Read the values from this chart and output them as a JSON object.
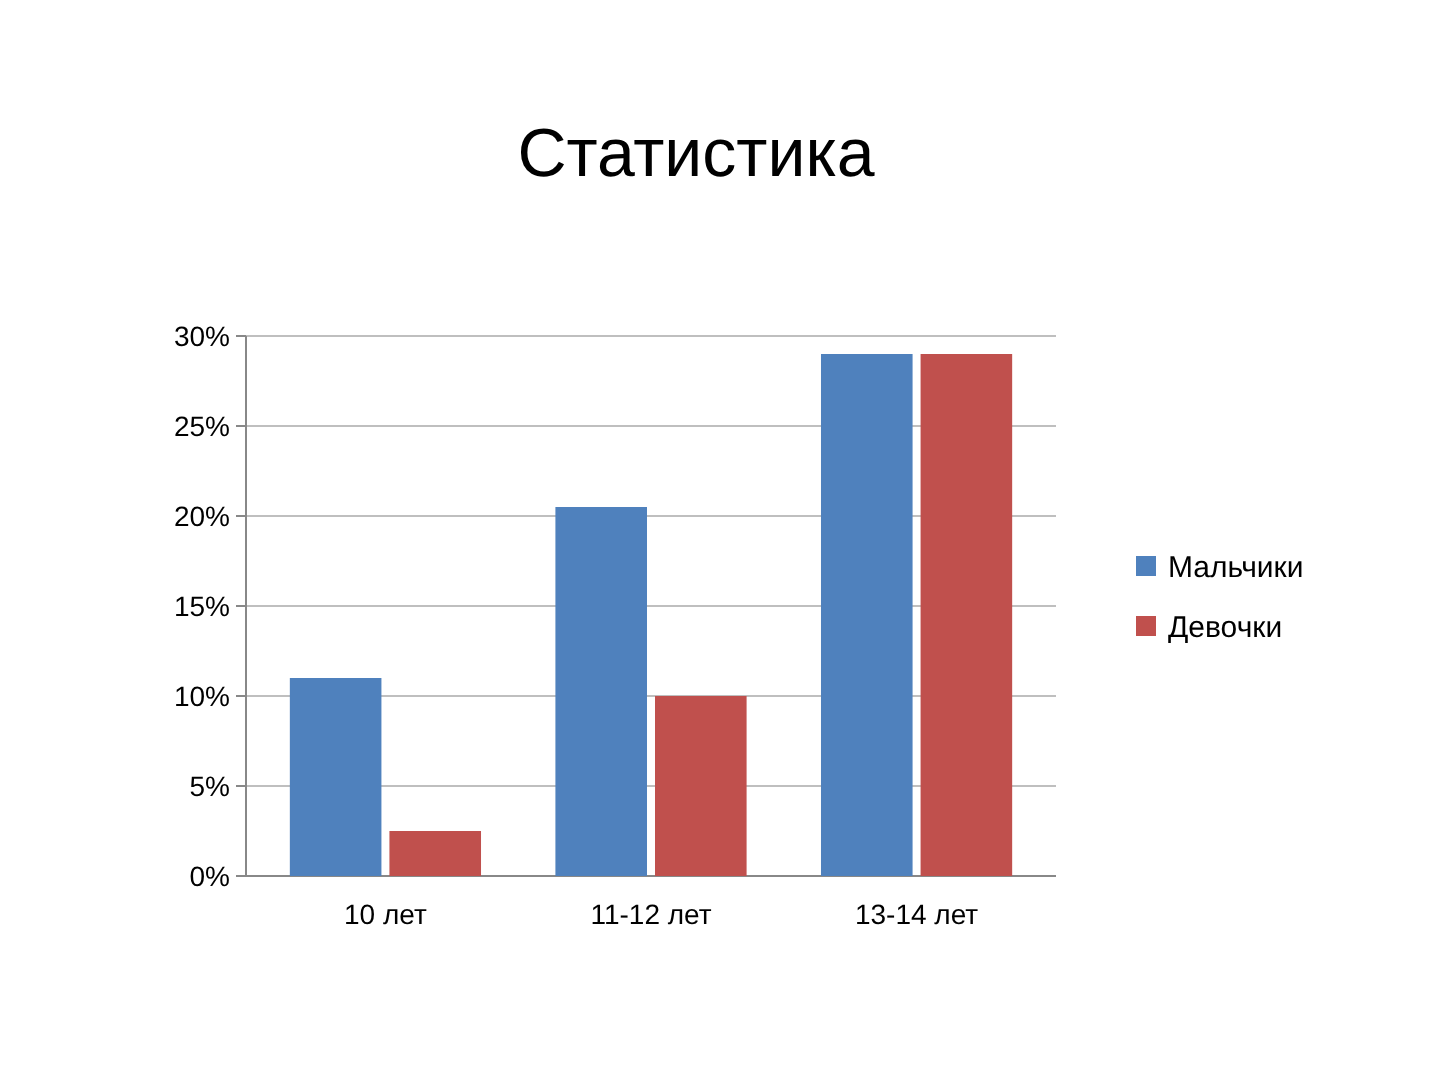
{
  "chart_data": {
    "type": "bar",
    "title": "Статистика",
    "categories": [
      "10 лет",
      "11-12 лет",
      "13-14 лет"
    ],
    "series": [
      {
        "name": "Мальчики",
        "color": "#4f81bd",
        "values": [
          11,
          20.5,
          29
        ]
      },
      {
        "name": "Девочки",
        "color": "#c0504d",
        "values": [
          2.5,
          10,
          29
        ]
      }
    ],
    "ylim": [
      0,
      30
    ],
    "yticks": [
      {
        "value": 0,
        "label": "0%"
      },
      {
        "value": 5,
        "label": "5%"
      },
      {
        "value": 10,
        "label": "10%"
      },
      {
        "value": 15,
        "label": "15%"
      },
      {
        "value": 20,
        "label": "20%"
      },
      {
        "value": 25,
        "label": "25%"
      },
      {
        "value": 30,
        "label": "30%"
      }
    ],
    "grid": "y",
    "legend": "right"
  }
}
